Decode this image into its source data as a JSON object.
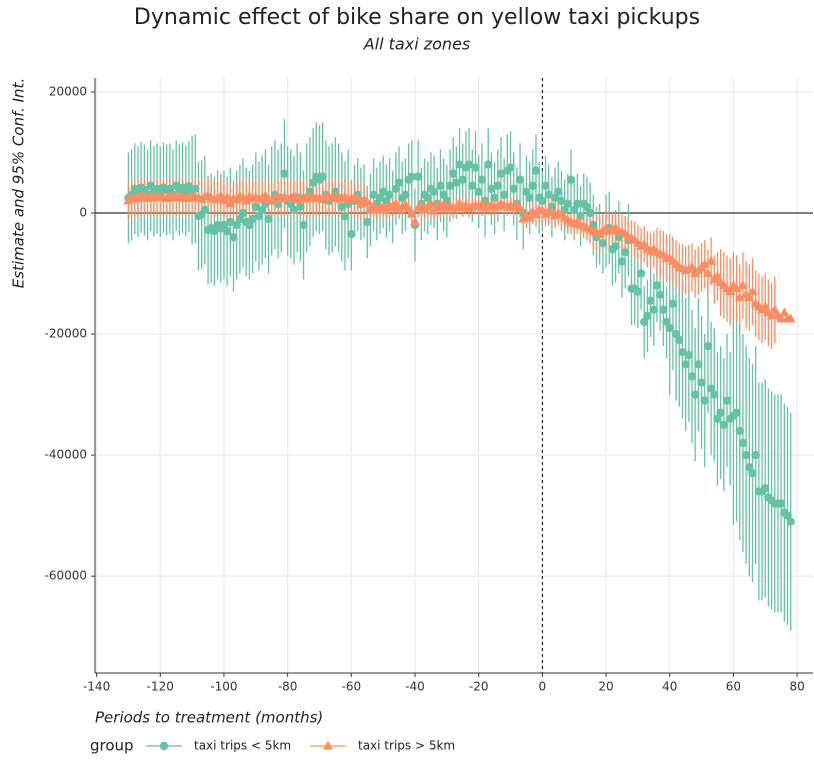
{
  "chart_data": {
    "type": "errorbar",
    "title": "Dynamic effect of bike share on yellow taxi pickups",
    "subtitle": "All taxi zones",
    "xlabel": "Periods to treatment (months)",
    "ylabel": "Estimate and 95% Conf. Int.",
    "legend_title": "group",
    "legend": "bottom",
    "grid": true,
    "hline": 0,
    "vline": 0,
    "xlim": [
      -140.5,
      85
    ],
    "ylim": [
      -76000,
      22300
    ],
    "xticks": [
      -140,
      -120,
      -100,
      -80,
      -60,
      -40,
      -20,
      0,
      20,
      40,
      60,
      80
    ],
    "yticks": [
      -60000,
      -40000,
      -20000,
      0,
      20000
    ],
    "x": [
      -130,
      -129,
      -128,
      -127,
      -126,
      -125,
      -124,
      -123,
      -122,
      -121,
      -120,
      -119,
      -118,
      -117,
      -116,
      -115,
      -114,
      -113,
      -112,
      -111,
      -110,
      -109,
      -108,
      -107,
      -106,
      -105,
      -104,
      -103,
      -102,
      -101,
      -100,
      -99,
      -98,
      -97,
      -96,
      -95,
      -94,
      -93,
      -92,
      -91,
      -90,
      -89,
      -88,
      -87,
      -86,
      -85,
      -84,
      -83,
      -82,
      -81,
      -80,
      -79,
      -78,
      -77,
      -76,
      -75,
      -74,
      -73,
      -72,
      -71,
      -70,
      -69,
      -68,
      -67,
      -66,
      -65,
      -64,
      -63,
      -62,
      -61,
      -60,
      -59,
      -58,
      -57,
      -56,
      -55,
      -54,
      -53,
      -52,
      -51,
      -50,
      -49,
      -48,
      -47,
      -46,
      -45,
      -44,
      -43,
      -42,
      -41,
      -40,
      -39,
      -38,
      -37,
      -36,
      -35,
      -34,
      -33,
      -32,
      -31,
      -30,
      -29,
      -28,
      -27,
      -26,
      -25,
      -24,
      -23,
      -22,
      -21,
      -20,
      -19,
      -18,
      -17,
      -16,
      -15,
      -14,
      -13,
      -12,
      -11,
      -10,
      -9,
      -8,
      -7,
      -6,
      -5,
      -4,
      -3,
      -2,
      -1,
      0,
      1,
      2,
      3,
      4,
      5,
      6,
      7,
      8,
      9,
      10,
      11,
      12,
      13,
      14,
      15,
      16,
      17,
      18,
      19,
      20,
      21,
      22,
      23,
      24,
      25,
      26,
      27,
      28,
      29,
      30,
      31,
      32,
      33,
      34,
      35,
      36,
      37,
      38,
      39,
      40,
      41,
      42,
      43,
      44,
      45,
      46,
      47,
      48,
      49,
      50,
      51,
      52,
      53,
      54,
      55,
      56,
      57,
      58,
      59,
      60,
      61,
      62,
      63,
      64,
      65,
      66,
      67,
      68,
      69,
      70,
      71,
      72,
      73,
      74,
      75,
      76,
      77,
      78
    ],
    "series": [
      {
        "name": "taxi trips < 5km",
        "color": "#66c2a5",
        "marker": "circle",
        "values": [
          2500,
          3000,
          4000,
          3500,
          4200,
          3800,
          3000,
          4500,
          3600,
          4000,
          3500,
          4200,
          3800,
          4000,
          3000,
          4500,
          3800,
          4200,
          3600,
          4400,
          3800,
          4000,
          -500,
          -300,
          500,
          -2800,
          -2500,
          -3000,
          -2000,
          -2500,
          -2000,
          -3000,
          -1500,
          -4000,
          -2000,
          -1000,
          0,
          -1500,
          -2000,
          -1000,
          1000,
          -500,
          500,
          1500,
          -1000,
          2000,
          3000,
          1500,
          2500,
          6500,
          2000,
          1500,
          500,
          2500,
          1000,
          -2000,
          2500,
          3500,
          5000,
          6000,
          5500,
          6000,
          3000,
          2000,
          2500,
          3500,
          2500,
          1000,
          -500,
          1500,
          -3500,
          2000,
          3000,
          1500,
          2000,
          -1500,
          500,
          3000,
          1500,
          2500,
          3500,
          2000,
          3000,
          1000,
          4000,
          5000,
          2500,
          3000,
          5500,
          6000,
          -2000,
          6000,
          1500,
          3000,
          2500,
          4000,
          3500,
          1500,
          4500,
          3000,
          2000,
          4500,
          6500,
          5000,
          8000,
          5500,
          7500,
          8000,
          4500,
          7500,
          3500,
          5500,
          2000,
          8000,
          4000,
          2500,
          4500,
          6500,
          3000,
          7000,
          7500,
          4000,
          1500,
          5500,
          0,
          3500,
          2500,
          4500,
          7000,
          2500,
          2000,
          4500,
          3000,
          1000,
          2500,
          3500,
          2000,
          500,
          1500,
          5500,
          500,
          1500,
          -500,
          1500,
          1000,
          0,
          -2000,
          -4000,
          -3500,
          -5000,
          -3000,
          -2500,
          -6000,
          -5500,
          -4000,
          -8000,
          -6500,
          -4500,
          -12500,
          -12500,
          -13000,
          -10000,
          -18000,
          -17000,
          -14500,
          -16000,
          -12000,
          -13500,
          -16000,
          -18000,
          -19000,
          -15000,
          -20000,
          -21000,
          -23000,
          -25000,
          -23500,
          -27000,
          -30000,
          -25000,
          -28000,
          -31000,
          -22000,
          -29000,
          -30000,
          -34000,
          -33000,
          -35000,
          -31000,
          -34000,
          -33500,
          -33000,
          -36000,
          -38000,
          -40000,
          -42000,
          -43000,
          -40000,
          -46000,
          -46000,
          -45500,
          -47000,
          -47500,
          -48000,
          -48000,
          -48000,
          -49500,
          -50000,
          -51000
        ],
        "errors": [
          7500,
          7500,
          7500,
          7500,
          7500,
          7500,
          7500,
          7500,
          7500,
          7500,
          7500,
          7500,
          7500,
          7500,
          7500,
          7500,
          7500,
          7500,
          7500,
          7500,
          9000,
          9000,
          9000,
          9000,
          9000,
          9000,
          9000,
          9000,
          9000,
          9000,
          9000,
          9000,
          9000,
          9000,
          9000,
          9000,
          9000,
          9000,
          9000,
          9000,
          9000,
          9000,
          9000,
          9000,
          9000,
          9000,
          9000,
          9000,
          9000,
          9000,
          9000,
          9000,
          9000,
          9000,
          9000,
          9000,
          9000,
          9000,
          9000,
          9000,
          9000,
          9000,
          9000,
          9000,
          9000,
          9000,
          9000,
          9000,
          9000,
          9000,
          6000,
          6000,
          6000,
          6000,
          6000,
          6000,
          6000,
          6000,
          6000,
          6000,
          6000,
          6000,
          6000,
          6000,
          6000,
          6000,
          6000,
          6000,
          6000,
          6000,
          6000,
          6000,
          6000,
          6000,
          6000,
          6000,
          6000,
          6000,
          6000,
          6000,
          6000,
          6000,
          6000,
          6000,
          6000,
          6000,
          6000,
          6000,
          6000,
          6000,
          6000,
          6000,
          6000,
          6000,
          6000,
          6000,
          6000,
          6000,
          6000,
          6000,
          6000,
          6000,
          6000,
          6000,
          6000,
          6000,
          6000,
          6000,
          6000,
          6000,
          5000,
          5000,
          5000,
          5000,
          5000,
          5000,
          5000,
          5000,
          5000,
          5000,
          5000,
          5000,
          5000,
          5000,
          5000,
          5000,
          5000,
          5000,
          5000,
          5000,
          6000,
          6000,
          6000,
          6000,
          6000,
          6000,
          6000,
          6000,
          6000,
          6000,
          6000,
          6000,
          6000,
          6000,
          6000,
          6000,
          6000,
          6000,
          6000,
          6000,
          11000,
          11000,
          11000,
          11000,
          11000,
          11000,
          11000,
          11000,
          11000,
          11000,
          11000,
          11000,
          11000,
          11000,
          11000,
          11000,
          11000,
          11000,
          11000,
          11000,
          18000,
          18000,
          18000,
          18000,
          18000,
          18000,
          18000,
          18000,
          18000,
          18000,
          18000,
          18000,
          18000,
          18000,
          18000,
          18000,
          18000,
          18000,
          18000
        ]
      },
      {
        "name": "taxi trips > 5km",
        "color": "#fc8d62",
        "marker": "triangle",
        "values": [
          2000,
          2500,
          2300,
          2500,
          2800,
          2600,
          2400,
          2700,
          2500,
          2600,
          2700,
          2500,
          2400,
          2800,
          2600,
          2500,
          2700,
          2600,
          2400,
          2500,
          2800,
          2600,
          2500,
          2300,
          2700,
          2900,
          2400,
          2200,
          2500,
          2800,
          2000,
          2600,
          1500,
          2400,
          2200,
          2800,
          2500,
          2000,
          2700,
          2400,
          2600,
          2300,
          2500,
          2800,
          2200,
          2000,
          2500,
          2700,
          2300,
          2600,
          2400,
          2500,
          2800,
          2200,
          2600,
          2500,
          2300,
          2700,
          2600,
          2400,
          2500,
          2200,
          2700,
          2600,
          2400,
          2800,
          2300,
          2500,
          2600,
          2200,
          2500,
          2300,
          2400,
          1500,
          2000,
          1800,
          600,
          1200,
          500,
          800,
          1000,
          400,
          1200,
          800,
          1500,
          600,
          1000,
          1300,
          700,
          -200,
          -1500,
          800,
          1200,
          500,
          1000,
          1500,
          300,
          1200,
          900,
          1400,
          800,
          1200,
          600,
          1000,
          1500,
          900,
          1300,
          700,
          1100,
          1200,
          1000,
          1400,
          800,
          1200,
          1300,
          900,
          1100,
          1500,
          1200,
          1000,
          1300,
          900,
          1200,
          700,
          -1000,
          -500,
          -800,
          200,
          -300,
          500,
          400,
          -200,
          300,
          100,
          -500,
          0,
          -300,
          -800,
          -1200,
          -1500,
          -1800,
          -1500,
          -2000,
          -2200,
          -2500,
          -2800,
          -3000,
          -3200,
          -3500,
          -3000,
          -2500,
          -3000,
          -2800,
          -2500,
          -3000,
          -3200,
          -3500,
          -4000,
          -4200,
          -4500,
          -5000,
          -5500,
          -5200,
          -6000,
          -6300,
          -6000,
          -6500,
          -6800,
          -7000,
          -7500,
          -7500,
          -8000,
          -8500,
          -9000,
          -9200,
          -9500,
          -9300,
          -9000,
          -10000,
          -9500,
          -9000,
          -8500,
          -10000,
          -8000,
          -11000,
          -10500,
          -11500,
          -12000,
          -12500,
          -13000,
          -12000,
          -12500,
          -14000,
          -12000,
          -13500,
          -14000,
          -13000,
          -15000,
          -15500,
          -16000,
          -15500,
          -16500,
          -17000,
          -16000,
          -17000,
          -17500,
          -16500,
          -17500,
          -17500
        ],
        "errors": [
          3000,
          3000,
          3000,
          3000,
          3000,
          3000,
          3000,
          3000,
          3000,
          3000,
          3000,
          3000,
          3000,
          3000,
          3000,
          3000,
          3000,
          3000,
          3000,
          3000,
          3000,
          3000,
          3000,
          3000,
          3000,
          3000,
          3000,
          3000,
          3000,
          3000,
          3000,
          3000,
          3000,
          3000,
          3000,
          3000,
          3000,
          3000,
          3000,
          3000,
          3000,
          3000,
          3000,
          3000,
          3000,
          3000,
          3000,
          3000,
          3000,
          3000,
          3000,
          3000,
          3000,
          3000,
          3000,
          3000,
          3000,
          3000,
          3000,
          3000,
          3000,
          3000,
          3000,
          3000,
          3000,
          3000,
          3000,
          3000,
          3000,
          3000,
          3000,
          3000,
          3000,
          3000,
          3000,
          1500,
          1500,
          1500,
          1500,
          1500,
          1500,
          1500,
          1500,
          1500,
          1500,
          1500,
          1500,
          1500,
          1500,
          1500,
          1500,
          1500,
          1500,
          1500,
          1500,
          1500,
          1500,
          1500,
          1500,
          1500,
          1500,
          1500,
          1500,
          1500,
          1500,
          1500,
          1500,
          1500,
          1500,
          1500,
          1500,
          1500,
          1500,
          1500,
          1500,
          1500,
          1500,
          1500,
          1500,
          1500,
          1500,
          1500,
          1500,
          1500,
          1500,
          1500,
          2000,
          2000,
          2000,
          2000,
          2000,
          2000,
          2000,
          2000,
          2000,
          2000,
          2000,
          2000,
          2000,
          2000,
          2000,
          2000,
          2000,
          2000,
          2000,
          2000,
          3000,
          3000,
          3000,
          3000,
          3000,
          3000,
          3000,
          3000,
          3000,
          3000,
          3000,
          3000,
          3000,
          3000,
          3000,
          3000,
          3000,
          3000,
          3000,
          3000,
          4000,
          4000,
          4000,
          4000,
          4000,
          4000,
          4000,
          4000,
          4000,
          4000,
          4000,
          4000,
          4000,
          4000,
          4000,
          4000,
          4000,
          4000,
          4000,
          4000,
          5500,
          5500,
          5500,
          5500,
          5500,
          5500,
          5500,
          5500,
          5500,
          5500,
          5500,
          5500,
          5500,
          5500,
          5500,
          5500,
          5500,
          5500
        ]
      }
    ]
  }
}
